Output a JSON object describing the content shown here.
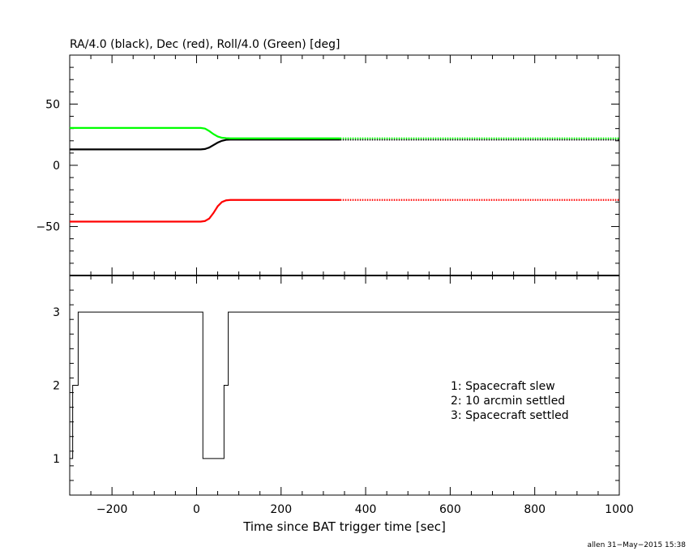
{
  "chart_data": [
    {
      "type": "line",
      "title": "RA/4.0 (black), Dec (red), Roll/4.0 (Green) [deg]",
      "xlim": [
        -300,
        1000
      ],
      "ylim": [
        -90,
        90
      ],
      "y_ticks": [
        50,
        0,
        -50
      ],
      "y_tick_labels": [
        "50",
        "0",
        "−50"
      ],
      "x_ticks": [
        -200,
        0,
        200,
        400,
        600,
        800,
        1000
      ],
      "x_tick_labels": [
        "",
        "",
        "",
        "",
        "",
        "",
        ""
      ],
      "grid": false,
      "series": [
        {
          "name": "RA/4.0",
          "color": "#000000",
          "x": [
            -300,
            10,
            20,
            30,
            40,
            50,
            60,
            70,
            80,
            340,
            1000
          ],
          "y": [
            13,
            13,
            13.3,
            14.5,
            16.5,
            18.5,
            20,
            20.8,
            21,
            21,
            21
          ],
          "dotted_after": 340
        },
        {
          "name": "Dec",
          "color": "#ff0000",
          "x": [
            -300,
            10,
            20,
            30,
            40,
            50,
            60,
            70,
            80,
            340,
            1000
          ],
          "y": [
            -46,
            -46,
            -45.5,
            -43.5,
            -39,
            -33.5,
            -30,
            -28.6,
            -28.3,
            -28.3,
            -28.3
          ],
          "dotted_after": 340
        },
        {
          "name": "Roll/4.0",
          "color": "#00ff00",
          "x": [
            -300,
            10,
            20,
            30,
            40,
            50,
            60,
            70,
            80,
            340,
            1000
          ],
          "y": [
            30.5,
            30.5,
            30,
            28,
            25.5,
            23.5,
            22.5,
            22.2,
            22,
            22,
            22
          ],
          "dotted_after": 340
        }
      ]
    },
    {
      "type": "line",
      "xlabel": "Time since BAT trigger time [sec]",
      "xlim": [
        -300,
        1000
      ],
      "ylim": [
        0.5,
        3.5
      ],
      "y_ticks": [
        3,
        2,
        1
      ],
      "y_tick_labels": [
        "3",
        "2",
        "1"
      ],
      "x_ticks": [
        -200,
        0,
        200,
        400,
        600,
        800,
        1000
      ],
      "x_tick_labels": [
        "−200",
        "0",
        "200",
        "400",
        "600",
        "800",
        "1000"
      ],
      "grid": false,
      "legend_position": "center-right",
      "annotations": [
        "1: Spacecraft slew",
        "2: 10 arcmin settled",
        "3: Spacecraft settled"
      ],
      "series": [
        {
          "color": "#000000",
          "step": true,
          "x": [
            -300,
            -293,
            -293,
            -288,
            -288,
            -280,
            -280,
            15,
            15,
            65,
            65,
            75,
            75,
            1000
          ],
          "y": [
            1,
            1,
            2,
            2,
            2,
            2,
            3,
            3,
            1,
            1,
            2,
            2,
            3,
            3
          ]
        }
      ]
    }
  ],
  "footer": {
    "stamp": "allen 31−May−2015 15:38"
  }
}
